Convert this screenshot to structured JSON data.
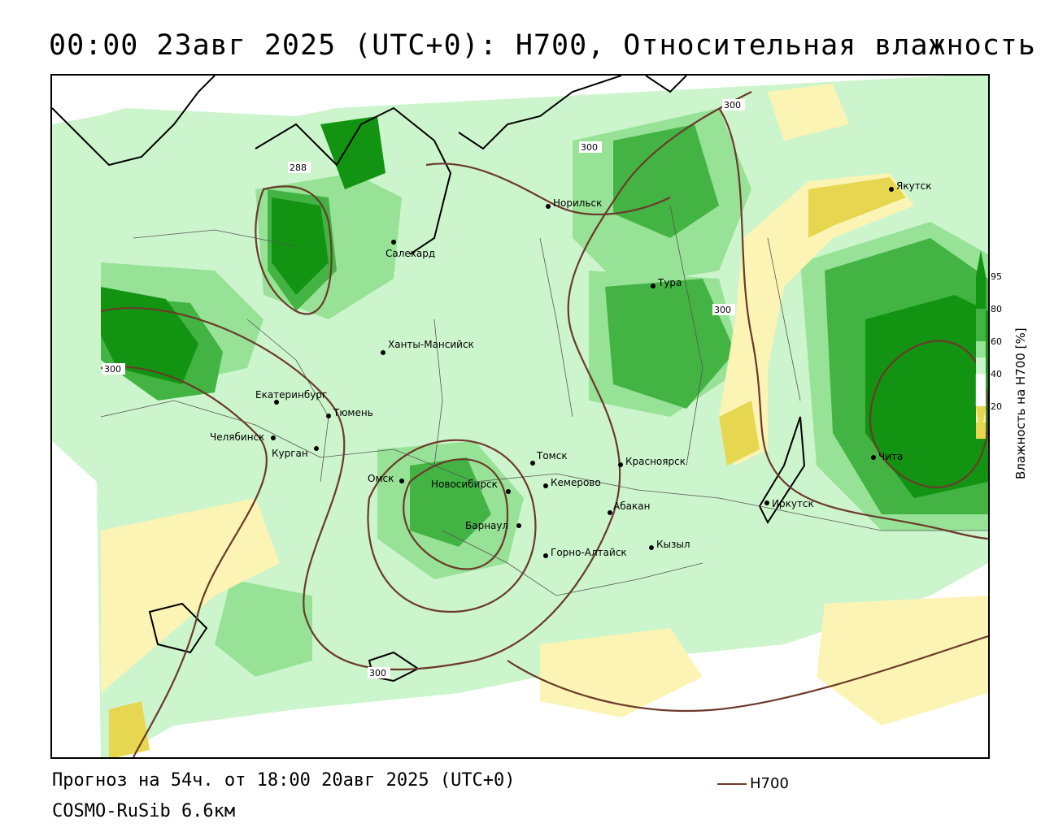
{
  "header": {
    "title": "00:00 23авг 2025 (UTC+0): H700, Относительная влажность"
  },
  "footer": {
    "forecast": "Прогноз на 54ч. от 18:00 20авг 2025 (UTC+0)",
    "model": "COSMO-RuSib 6.6км",
    "line_legend": "H700"
  },
  "legend": {
    "title": "Влажность на H700 [%]",
    "ticks": [
      "95",
      "80",
      "60",
      "40",
      "20"
    ]
  },
  "contour_labels": [
    "288",
    "300",
    "300",
    "300",
    "300",
    "300"
  ],
  "cities": [
    {
      "name": "Якутск"
    },
    {
      "name": "Норильск"
    },
    {
      "name": "Салехард"
    },
    {
      "name": "Тура"
    },
    {
      "name": "Ханты-Мансийск"
    },
    {
      "name": "Екатеринбург"
    },
    {
      "name": "Тюмень"
    },
    {
      "name": "Челябинск"
    },
    {
      "name": "Курган"
    },
    {
      "name": "Омск"
    },
    {
      "name": "Новосибирск"
    },
    {
      "name": "Томск"
    },
    {
      "name": "Кемерово"
    },
    {
      "name": "Красноярск"
    },
    {
      "name": "Барнаул"
    },
    {
      "name": "Абакан"
    },
    {
      "name": "Горно-Алтайск"
    },
    {
      "name": "Кызыл"
    },
    {
      "name": "Иркутск"
    },
    {
      "name": "Чита"
    }
  ],
  "colors": {
    "rh_95": "#129412",
    "rh_80": "#43b443",
    "rh_70": "#97e297",
    "rh_60": "#cdf5cd",
    "rh_40": "#ffffff",
    "rh_30": "#fbf4b4",
    "rh_20": "#e7d64f",
    "contour": "#6b3a2a"
  }
}
